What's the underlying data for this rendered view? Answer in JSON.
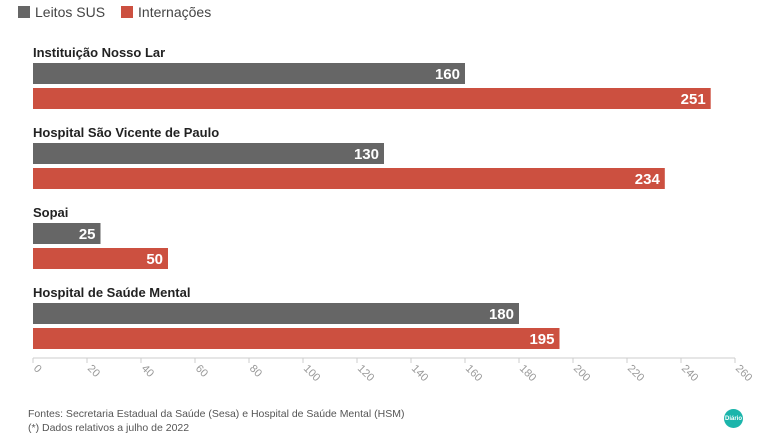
{
  "legend": {
    "items": [
      {
        "label": "Leitos SUS",
        "color": "#666666"
      },
      {
        "label": "Internações",
        "color": "#cc5040"
      }
    ]
  },
  "chart_data": {
    "type": "bar",
    "orientation": "horizontal",
    "categories": [
      "Instituição Nosso Lar",
      "Hospital São Vicente de Paulo",
      "Sopai",
      "Hospital de Saúde Mental"
    ],
    "series": [
      {
        "name": "Leitos SUS",
        "color": "#666666",
        "values": [
          160,
          130,
          25,
          180
        ]
      },
      {
        "name": "Internações",
        "color": "#cc5040",
        "values": [
          251,
          234,
          50,
          195
        ]
      }
    ],
    "xlim": [
      0,
      260
    ],
    "ticks": [
      0,
      20,
      40,
      60,
      80,
      100,
      120,
      140,
      160,
      180,
      200,
      220,
      240,
      260
    ],
    "legend_position": "top-left"
  },
  "footer": {
    "source": "Fontes: Secretaria Estadual da Saúde (Sesa) e Hospital de Saúde Mental (HSM)",
    "note": "(*) Dados relativos a julho de 2022"
  },
  "logo": {
    "text": "Diário",
    "color": "#1bb5ab"
  }
}
